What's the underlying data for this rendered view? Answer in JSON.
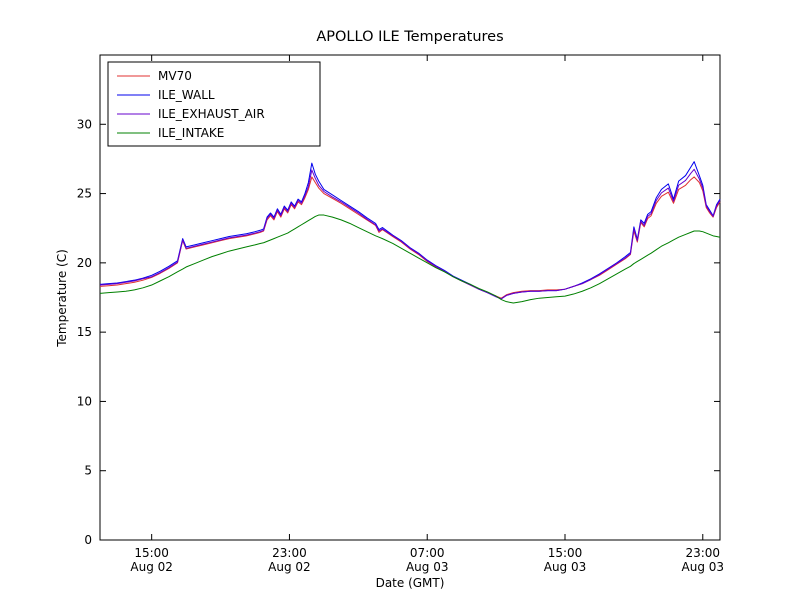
{
  "chart_data": {
    "type": "line",
    "title": "APOLLO ILE Temperatures",
    "xlabel": "Date (GMT)",
    "ylabel": "Temperature (C)",
    "x_unit": "hours since Aug 02 12:00 GMT",
    "xlim": [
      0,
      36
    ],
    "ylim": [
      0,
      35
    ],
    "yticks": [
      0,
      5,
      10,
      15,
      20,
      25,
      30
    ],
    "xticks": [
      {
        "pos": 3,
        "time": "15:00",
        "date": "Aug 02"
      },
      {
        "pos": 11,
        "time": "23:00",
        "date": "Aug 02"
      },
      {
        "pos": 19,
        "time": "07:00",
        "date": "Aug 03"
      },
      {
        "pos": 27,
        "time": "15:00",
        "date": "Aug 03"
      },
      {
        "pos": 35,
        "time": "23:00",
        "date": "Aug 03"
      }
    ],
    "grid": false,
    "legend_position": "upper left",
    "x": [
      0,
      0.5,
      1,
      1.5,
      2,
      2.5,
      3,
      3.5,
      4,
      4.5,
      4.8,
      5,
      5.5,
      6,
      6.5,
      7,
      7.5,
      8,
      8.5,
      9,
      9.3,
      9.5,
      9.7,
      9.9,
      10.1,
      10.3,
      10.5,
      10.7,
      10.9,
      11.1,
      11.3,
      11.5,
      11.7,
      11.9,
      12.1,
      12.3,
      12.5,
      12.7,
      13,
      13.5,
      14,
      14.5,
      15,
      15.5,
      16,
      16.2,
      16.4,
      17,
      17.5,
      18,
      18.5,
      19,
      19.5,
      20,
      20.5,
      21,
      21.5,
      22,
      22.5,
      23,
      23.3,
      23.6,
      24,
      24.5,
      25,
      25.5,
      26,
      26.5,
      27,
      27.5,
      28,
      28.5,
      29,
      29.5,
      30,
      30.5,
      30.8,
      31,
      31.2,
      31.4,
      31.6,
      31.8,
      32,
      32.3,
      32.6,
      33,
      33.3,
      33.6,
      34,
      34.3,
      34.5,
      34.8,
      35,
      35.2,
      35.4,
      35.6,
      35.8,
      36
    ],
    "series": [
      {
        "name": "MV70",
        "color": "#e03030",
        "values": [
          18.3,
          18.35,
          18.4,
          18.5,
          18.6,
          18.75,
          18.95,
          19.25,
          19.6,
          20.0,
          21.6,
          21.0,
          21.15,
          21.3,
          21.45,
          21.6,
          21.75,
          21.85,
          21.95,
          22.1,
          22.2,
          22.3,
          23.1,
          23.4,
          23.1,
          23.7,
          23.3,
          23.9,
          23.6,
          24.2,
          23.9,
          24.4,
          24.2,
          24.7,
          25.3,
          26.2,
          25.8,
          25.4,
          25.0,
          24.65,
          24.3,
          23.9,
          23.5,
          23.1,
          22.7,
          22.2,
          22.4,
          21.9,
          21.5,
          21.0,
          20.6,
          20.1,
          19.7,
          19.4,
          19.0,
          18.7,
          18.4,
          18.1,
          17.85,
          17.6,
          17.45,
          17.7,
          17.85,
          17.95,
          18.0,
          18.0,
          18.05,
          18.05,
          18.1,
          18.3,
          18.5,
          18.8,
          19.1,
          19.5,
          19.9,
          20.3,
          20.6,
          22.3,
          21.5,
          22.9,
          22.6,
          23.2,
          23.4,
          24.3,
          24.8,
          25.1,
          24.3,
          25.3,
          25.6,
          26.0,
          26.2,
          25.8,
          25.2,
          24.0,
          23.6,
          23.3,
          24.0,
          24.4
        ]
      },
      {
        "name": "ILE_WALL",
        "color": "#0000ee",
        "values": [
          18.45,
          18.5,
          18.55,
          18.65,
          18.75,
          18.9,
          19.1,
          19.4,
          19.75,
          20.15,
          21.75,
          21.15,
          21.3,
          21.45,
          21.6,
          21.75,
          21.9,
          22.0,
          22.1,
          22.25,
          22.35,
          22.45,
          23.3,
          23.6,
          23.3,
          23.9,
          23.5,
          24.1,
          23.8,
          24.4,
          24.1,
          24.6,
          24.4,
          25.0,
          25.8,
          27.2,
          26.4,
          25.9,
          25.3,
          24.9,
          24.5,
          24.1,
          23.7,
          23.25,
          22.85,
          22.4,
          22.55,
          22.0,
          21.6,
          21.1,
          20.7,
          20.2,
          19.8,
          19.45,
          19.05,
          18.75,
          18.45,
          18.1,
          17.85,
          17.55,
          17.4,
          17.65,
          17.8,
          17.9,
          17.95,
          17.95,
          18.0,
          18.0,
          18.1,
          18.3,
          18.55,
          18.85,
          19.2,
          19.6,
          20.0,
          20.45,
          20.75,
          22.6,
          21.7,
          23.1,
          22.85,
          23.5,
          23.7,
          24.7,
          25.3,
          25.7,
          24.6,
          25.9,
          26.3,
          26.9,
          27.3,
          26.3,
          25.6,
          24.2,
          23.8,
          23.4,
          24.2,
          24.6
        ]
      },
      {
        "name": "ILE_EXHAUST_AIR",
        "color": "#6600cc",
        "values": [
          18.4,
          18.45,
          18.5,
          18.6,
          18.7,
          18.85,
          19.0,
          19.3,
          19.65,
          20.05,
          21.65,
          21.05,
          21.2,
          21.35,
          21.5,
          21.65,
          21.8,
          21.9,
          22.0,
          22.15,
          22.25,
          22.35,
          23.2,
          23.5,
          23.2,
          23.8,
          23.4,
          24.0,
          23.7,
          24.3,
          24.0,
          24.5,
          24.3,
          24.85,
          25.5,
          26.7,
          26.1,
          25.6,
          25.15,
          24.75,
          24.4,
          24.0,
          23.6,
          23.15,
          22.75,
          22.3,
          22.45,
          21.95,
          21.55,
          21.05,
          20.65,
          20.15,
          19.75,
          19.4,
          19.0,
          18.7,
          18.4,
          18.1,
          17.85,
          17.55,
          17.4,
          17.65,
          17.8,
          17.9,
          17.95,
          17.95,
          18.0,
          18.0,
          18.1,
          18.3,
          18.5,
          18.8,
          19.15,
          19.55,
          19.95,
          20.35,
          20.65,
          22.45,
          21.6,
          23.0,
          22.7,
          23.35,
          23.55,
          24.5,
          25.05,
          25.4,
          24.45,
          25.6,
          25.95,
          26.45,
          26.75,
          26.05,
          25.4,
          24.1,
          23.7,
          23.35,
          24.1,
          24.5
        ]
      },
      {
        "name": "ILE_INTAKE",
        "color": "#008000",
        "values": [
          17.8,
          17.85,
          17.9,
          17.95,
          18.05,
          18.2,
          18.4,
          18.7,
          19.0,
          19.35,
          19.55,
          19.7,
          19.95,
          20.2,
          20.45,
          20.65,
          20.85,
          21.0,
          21.15,
          21.3,
          21.4,
          21.45,
          21.55,
          21.65,
          21.75,
          21.85,
          21.95,
          22.05,
          22.15,
          22.3,
          22.45,
          22.6,
          22.75,
          22.9,
          23.05,
          23.2,
          23.35,
          23.45,
          23.45,
          23.3,
          23.1,
          22.85,
          22.55,
          22.25,
          21.95,
          21.85,
          21.75,
          21.4,
          21.05,
          20.7,
          20.35,
          20.0,
          19.65,
          19.35,
          19.0,
          18.7,
          18.45,
          18.15,
          17.9,
          17.6,
          17.35,
          17.2,
          17.1,
          17.2,
          17.35,
          17.45,
          17.5,
          17.55,
          17.6,
          17.75,
          17.95,
          18.2,
          18.5,
          18.85,
          19.2,
          19.55,
          19.75,
          19.95,
          20.1,
          20.25,
          20.4,
          20.55,
          20.7,
          20.95,
          21.2,
          21.45,
          21.65,
          21.85,
          22.05,
          22.2,
          22.3,
          22.3,
          22.25,
          22.15,
          22.05,
          21.95,
          21.9,
          21.85
        ]
      }
    ]
  }
}
